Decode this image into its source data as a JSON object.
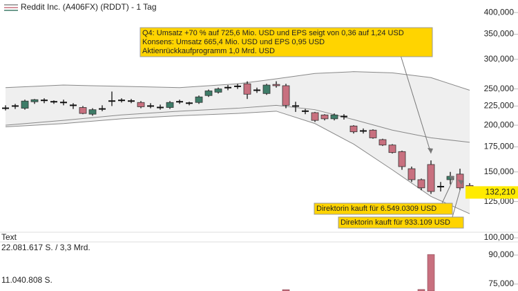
{
  "header": {
    "title": "Reddit Inc. (A406FX) (RDDT) - 1 Tag"
  },
  "chart_data": [
    {
      "type": "candlestick",
      "log_scale": true,
      "ylim": [
        97500,
        423000
      ],
      "yticks": [
        {
          "value": 100000,
          "label": "100,000"
        },
        {
          "value": 125000,
          "label": "125,000"
        },
        {
          "value": 150000,
          "label": "150,000"
        },
        {
          "value": 175000,
          "label": "175,000"
        },
        {
          "value": 200000,
          "label": "200,000"
        },
        {
          "value": 225000,
          "label": "225,000"
        },
        {
          "value": 250000,
          "label": "250,000"
        },
        {
          "value": 300000,
          "label": "300,000"
        },
        {
          "value": 350000,
          "label": "350,000"
        },
        {
          "value": 400000,
          "label": "400,000"
        }
      ],
      "up_color": "#3e7c68",
      "down_color": "#c8707f",
      "flat_color": "#111111",
      "open": [
        222000,
        225000,
        222000,
        231000,
        233000,
        231000,
        230000,
        226000,
        223000,
        214000,
        221000,
        232000,
        233000,
        232000,
        230000,
        225000,
        223000,
        223000,
        231000,
        229000,
        230000,
        240000,
        245000,
        252000,
        254000,
        258000,
        248000,
        243000,
        257000,
        255000,
        225000,
        218000,
        216000,
        213000,
        208000,
        211000,
        199000,
        193000,
        194000,
        183000,
        177000,
        170000,
        153000,
        143000,
        157000,
        137000,
        143000,
        148000,
        138000
      ],
      "high": [
        226000,
        228000,
        234000,
        235000,
        236000,
        233000,
        234000,
        229000,
        225000,
        222000,
        226000,
        246000,
        236000,
        235000,
        232000,
        229000,
        227000,
        232000,
        234000,
        231000,
        240000,
        249000,
        252000,
        256000,
        258000,
        262000,
        252000,
        258000,
        262000,
        258000,
        231000,
        221000,
        217000,
        214000,
        215000,
        214000,
        200000,
        196000,
        195000,
        184000,
        178000,
        171000,
        155000,
        144000,
        161000,
        141000,
        150000,
        153000,
        140000
      ],
      "low": [
        219000,
        221000,
        220000,
        228000,
        229000,
        228000,
        226000,
        221000,
        214000,
        212000,
        218000,
        225000,
        230000,
        229000,
        222000,
        222000,
        220000,
        221000,
        228000,
        226000,
        228000,
        238000,
        243000,
        248000,
        250000,
        235000,
        244000,
        241000,
        252000,
        222000,
        217000,
        214000,
        204000,
        206000,
        206000,
        207000,
        190000,
        190000,
        184000,
        176000,
        168000,
        152000,
        141000,
        134000,
        131000,
        133000,
        139000,
        134000,
        128000
      ],
      "close": [
        222000,
        225000,
        232000,
        234000,
        233000,
        231000,
        230000,
        226000,
        215000,
        220000,
        221000,
        232000,
        233000,
        232000,
        224000,
        225000,
        223000,
        230000,
        231000,
        229000,
        238000,
        247000,
        250000,
        252000,
        254000,
        242000,
        248000,
        256000,
        255000,
        226000,
        225000,
        218000,
        206000,
        208000,
        213000,
        211000,
        192000,
        193000,
        185000,
        177000,
        169000,
        155000,
        143000,
        136000,
        133000,
        137000,
        146000,
        136000,
        132210
      ],
      "bands": {
        "x": [
          0,
          6,
          12,
          18,
          24,
          28,
          32,
          36,
          40,
          44,
          48
        ],
        "fill": "#efefef",
        "line_color": "#888888",
        "upper": [
          252000,
          256000,
          254000,
          252000,
          258000,
          266000,
          275000,
          278000,
          276000,
          268000,
          248000
        ],
        "middle": [
          200000,
          206000,
          213000,
          218000,
          222000,
          226000,
          220000,
          207000,
          194000,
          185000,
          180000
        ],
        "lower": [
          198000,
          202000,
          208000,
          212000,
          215000,
          218000,
          202000,
          178000,
          152000,
          129000,
          116000
        ]
      },
      "last_price": {
        "value": 132210,
        "label": "132,210"
      },
      "annotations": [
        {
          "lines": [
            "Q4: Umsatz +70 % auf 725,6 Mio. USD und EPS seigt von 0,36 auf 1,24 USD",
            "Konsens: Umsatz 665,4 Mio. USD und EPS 0,95 USD",
            "Aktienrückkaufprogramm 1,0 Mrd. USD"
          ]
        },
        {
          "lines": [
            "Direktorin kauft für 6.549.0309 USD"
          ]
        },
        {
          "lines": [
            "Direktorin kauft für 933.109 USD"
          ]
        }
      ]
    },
    {
      "type": "bar",
      "texts": [
        "Text",
        "22.081.617 S. / 3,3 Mrd.",
        "11.040.808 S."
      ],
      "x": [
        29,
        43,
        44
      ],
      "values": [
        72100,
        72200,
        90300
      ],
      "color": "#c8707f",
      "ylim": [
        71400,
        96800
      ],
      "yticks": [
        {
          "value": 75000,
          "label": "75,000"
        },
        {
          "value": 90000,
          "label": "90,000"
        }
      ]
    }
  ]
}
